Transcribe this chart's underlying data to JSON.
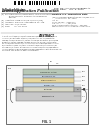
{
  "bg_color": "#ffffff",
  "barcode_color": "#111111",
  "text_dark": "#222222",
  "text_mid": "#444444",
  "text_light": "#666666",
  "line_color": "#888888",
  "diagram_border": "#555555",
  "diagram_bg": "#f0f0f0",
  "layer_substrate": "#c8c8c8",
  "layer_gate": "#b8c8b8",
  "layer_block": "#c8d8e8",
  "layer_nc": "#e8d8a0",
  "layer_tunnel": "#c8d8e8",
  "layer_channel": "#d8d8c8",
  "layer_sd": "#b8b8b8"
}
